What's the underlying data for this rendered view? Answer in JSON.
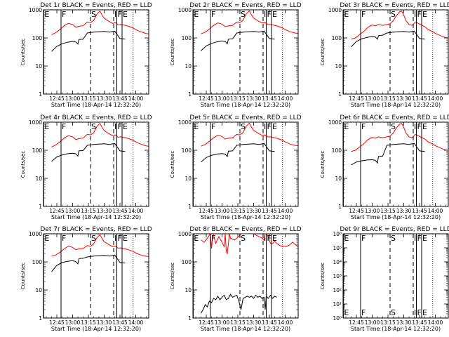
{
  "figure": {
    "background": "#ffffff"
  },
  "chart_data": {
    "type": "line",
    "yscale": "log",
    "x_tick_labels": [
      "12:45",
      "13:00",
      "13:15",
      "13:30",
      "13:45",
      "14:00"
    ],
    "x_tick_minutes": [
      45,
      60,
      75,
      90,
      105,
      120
    ],
    "xlim_minutes": [
      32.33,
      132.33
    ],
    "xlabel": "Start Time (18-Apr-14 12:32:20)",
    "ylabel": "Counts/sec",
    "default_ylim": [
      1,
      1000
    ],
    "default_y_ticks": [
      1,
      10,
      100,
      1000
    ],
    "default_y_tick_labels": [
      "1",
      "10",
      "100",
      "1000"
    ],
    "colors": {
      "events": "#000000",
      "lld": "#ff0000"
    },
    "interval_markers": [
      {
        "label": "E",
        "x": 32.6,
        "style": "solid"
      },
      {
        "label": "F",
        "x": 49,
        "style": "solid"
      },
      {
        "label": "S",
        "x": 77,
        "style": "dashed"
      },
      {
        "label": "I",
        "x": 99,
        "style": "dashed"
      },
      {
        "label": "F",
        "x": 102,
        "style": "solid"
      },
      {
        "label": "E",
        "x": 107,
        "style": "solid"
      },
      {
        "label": "",
        "x": 117.5,
        "style": "dotted"
      }
    ],
    "panels": [
      {
        "title": "Det 1r BLACK = Events, RED = LLD",
        "series": [
          {
            "key": "events",
            "x": [
              40,
              45,
              50,
              55,
              60,
              63,
              65,
              66,
              70,
              74,
              80,
              90,
              95,
              100,
              105,
              110
            ],
            "y": [
              33,
              50,
              62,
              70,
              75,
              72,
              60,
              88,
              90,
              150,
              160,
              170,
              160,
              175,
              95,
              90
            ]
          },
          {
            "key": "lld",
            "x": [
              40,
              44,
              48,
              52,
              56,
              60,
              63,
              66,
              70,
              74,
              77,
              80,
              83,
              86,
              88,
              90,
              92,
              95,
              98,
              101,
              103,
              106,
              110,
              113,
              117,
              121,
              125,
              129,
              132
            ],
            "y": [
              130,
              155,
              200,
              270,
              330,
              300,
              240,
              260,
              270,
              370,
              350,
              420,
              700,
              900,
              650,
              500,
              450,
              380,
              330,
              350,
              290,
              300,
              280,
              260,
              230,
              190,
              165,
              145,
              140
            ]
          }
        ]
      },
      {
        "title": "Det 2r BLACK = Events, RED = LLD",
        "series": [
          {
            "key": "events",
            "x": [
              40,
              45,
              50,
              55,
              60,
              63,
              65,
              66,
              70,
              74,
              80,
              90,
              95,
              100,
              105,
              110
            ],
            "y": [
              35,
              52,
              64,
              72,
              78,
              74,
              62,
              90,
              92,
              150,
              160,
              170,
              160,
              175,
              95,
              90
            ]
          },
          {
            "key": "lld",
            "x": [
              40,
              44,
              48,
              52,
              56,
              60,
              63,
              66,
              70,
              74,
              77,
              80,
              83,
              86,
              88,
              90,
              92,
              95,
              98,
              101,
              103,
              106,
              110,
              113,
              117,
              121,
              125,
              129,
              132
            ],
            "y": [
              140,
              160,
              210,
              280,
              340,
              310,
              250,
              270,
              280,
              370,
              350,
              430,
              720,
              920,
              660,
              510,
              460,
              390,
              340,
              350,
              300,
              300,
              280,
              260,
              230,
              190,
              165,
              150,
              145
            ]
          }
        ]
      },
      {
        "title": "Det 3r BLACK = Events, RED = LLD",
        "series": [
          {
            "key": "events",
            "x": [
              40,
              45,
              50,
              55,
              60,
              63,
              65,
              66,
              70,
              74,
              80,
              90,
              95,
              100,
              105,
              110
            ],
            "y": [
              48,
              75,
              92,
              105,
              112,
              108,
              90,
              120,
              125,
              150,
              160,
              170,
              160,
              175,
              95,
              90
            ]
          },
          {
            "key": "lld",
            "x": [
              40,
              44,
              48,
              52,
              56,
              60,
              63,
              66,
              70,
              74,
              77,
              80,
              83,
              86,
              88,
              90,
              92,
              95,
              98,
              101,
              103,
              106,
              110,
              113,
              117,
              121,
              125,
              129,
              132
            ],
            "y": [
              90,
              100,
              130,
              170,
              240,
              290,
              270,
              300,
              280,
              300,
              320,
              410,
              620,
              850,
              900,
              650,
              420,
              300,
              280,
              370,
              340,
              300,
              250,
              200,
              170,
              140,
              120,
              105,
              100
            ]
          }
        ]
      },
      {
        "title": "Det 4r BLACK = Events, RED = LLD",
        "series": [
          {
            "key": "events",
            "x": [
              40,
              45,
              50,
              55,
              60,
              63,
              65,
              66,
              70,
              74,
              80,
              90,
              95,
              100,
              105,
              110
            ],
            "y": [
              40,
              58,
              68,
              75,
              78,
              75,
              62,
              95,
              98,
              150,
              160,
              170,
              160,
              175,
              95,
              90
            ]
          },
          {
            "key": "lld",
            "x": [
              40,
              44,
              48,
              52,
              56,
              60,
              63,
              66,
              70,
              74,
              77,
              80,
              83,
              86,
              88,
              90,
              92,
              95,
              98,
              101,
              103,
              106,
              110,
              113,
              117,
              121,
              125,
              129,
              132
            ],
            "y": [
              130,
              155,
              200,
              270,
              330,
              300,
              240,
              260,
              270,
              370,
              350,
              420,
              700,
              900,
              650,
              500,
              450,
              380,
              330,
              350,
              290,
              300,
              280,
              260,
              230,
              190,
              165,
              145,
              140
            ]
          }
        ]
      },
      {
        "title": "Det 5r BLACK = Events, RED = LLD",
        "series": [
          {
            "key": "events",
            "x": [
              40,
              45,
              50,
              55,
              60,
              63,
              65,
              66,
              70,
              74,
              80,
              90,
              95,
              100,
              105,
              110
            ],
            "y": [
              38,
              55,
              66,
              73,
              76,
              73,
              60,
              92,
              95,
              150,
              160,
              170,
              160,
              175,
              95,
              90
            ]
          },
          {
            "key": "lld",
            "x": [
              40,
              44,
              48,
              52,
              56,
              60,
              63,
              66,
              70,
              74,
              77,
              80,
              83,
              86,
              88,
              90,
              92,
              95,
              98,
              101,
              103,
              106,
              110,
              113,
              117,
              121,
              125,
              129,
              132
            ],
            "y": [
              140,
              160,
              210,
              280,
              340,
              310,
              250,
              270,
              280,
              370,
              350,
              430,
              720,
              920,
              660,
              510,
              460,
              390,
              340,
              350,
              300,
              300,
              280,
              260,
              230,
              190,
              165,
              150,
              145
            ]
          }
        ]
      },
      {
        "title": "Det 6r BLACK = Events, RED = LLD",
        "series": [
          {
            "key": "events",
            "x": [
              40,
              45,
              50,
              55,
              60,
              63,
              65,
              66,
              70,
              74,
              80,
              90,
              95,
              100,
              105,
              110
            ],
            "y": [
              30,
              38,
              42,
              45,
              46,
              44,
              35,
              60,
              62,
              150,
              160,
              170,
              160,
              175,
              95,
              90
            ]
          },
          {
            "key": "lld",
            "x": [
              40,
              44,
              48,
              52,
              56,
              60,
              63,
              66,
              70,
              74,
              77,
              80,
              83,
              86,
              88,
              90,
              92,
              95,
              98,
              101,
              103,
              106,
              110,
              113,
              117,
              121,
              125,
              129,
              132
            ],
            "y": [
              90,
              100,
              130,
              170,
              240,
              290,
              270,
              300,
              280,
              300,
              320,
              410,
              620,
              850,
              900,
              650,
              420,
              300,
              280,
              370,
              340,
              300,
              250,
              200,
              170,
              140,
              120,
              105,
              100
            ]
          }
        ]
      },
      {
        "title": "Det 7r BLACK = Events, RED = LLD",
        "series": [
          {
            "key": "events",
            "x": [
              40,
              45,
              50,
              55,
              60,
              63,
              65,
              66,
              70,
              74,
              80,
              90,
              95,
              100,
              105,
              110
            ],
            "y": [
              45,
              75,
              95,
              105,
              110,
              102,
              85,
              130,
              135,
              150,
              160,
              170,
              160,
              175,
              95,
              90
            ]
          },
          {
            "key": "lld",
            "x": [
              40,
              44,
              48,
              52,
              56,
              60,
              63,
              66,
              70,
              74,
              77,
              80,
              83,
              86,
              88,
              90,
              92,
              95,
              98,
              101,
              103,
              106,
              110,
              113,
              117,
              121,
              125,
              129,
              132
            ],
            "y": [
              160,
              175,
              220,
              290,
              360,
              330,
              270,
              290,
              300,
              380,
              360,
              440,
              720,
              930,
              680,
              520,
              470,
              400,
              350,
              360,
              310,
              310,
              290,
              270,
              240,
              200,
              175,
              160,
              155
            ]
          }
        ]
      },
      {
        "title": "Det 8r BLACK = Events, RED = LLD",
        "series": [
          {
            "key": "events",
            "x": [
              40,
              42,
              44,
              46,
              48,
              50,
              52,
              54,
              56,
              58,
              60,
              62,
              64,
              66,
              68,
              70,
              72,
              74,
              76,
              78,
              80,
              82,
              84,
              86,
              88,
              90,
              92,
              94,
              96,
              98,
              100,
              101,
              102,
              104,
              106,
              108,
              110,
              112
            ],
            "y": [
              1.5,
              2,
              3,
              2.5,
              4,
              3.5,
              5,
              4.5,
              6,
              4.5,
              5.5,
              6.5,
              4.5,
              5,
              7,
              5.5,
              6,
              6.5,
              4,
              2,
              5,
              5.5,
              6,
              5.5,
              6,
              5,
              6.5,
              5.5,
              6,
              5,
              5.5,
              2,
              6,
              5,
              6.5,
              5,
              6,
              5.5
            ]
          },
          {
            "key": "lld",
            "x": [
              40,
              43,
              46,
              48,
              49,
              50,
              51,
              52,
              54,
              57,
              60,
              62,
              63,
              64,
              65,
              67,
              68,
              70,
              72,
              74,
              76,
              78,
              80,
              82,
              85,
              88,
              90,
              92,
              95,
              98,
              100,
              101,
              102,
              104,
              106,
              108,
              110,
              112,
              115,
              118,
              121,
              124,
              127,
              130,
              132
            ],
            "y": [
              600,
              500,
              700,
              900,
              1000,
              300,
              800,
              900,
              450,
              800,
              500,
              350,
              1000,
              240,
              200,
              1000,
              700,
              650,
              600,
              700,
              800,
              1000,
              1000,
              1000,
              1000,
              1000,
              1000,
              900,
              800,
              700,
              600,
              1000,
              1000,
              800,
              450,
              450,
              550,
              450,
              380,
              360,
              350,
              400,
              500,
              400,
              350
            ]
          }
        ]
      },
      {
        "title": "Det 9r BLACK = Events, RED = LLD",
        "ylim": [
          1,
          1000000
        ],
        "y_ticks": [
          1,
          10,
          100,
          1000,
          10000,
          100000,
          1000000
        ],
        "y_tick_labels": [
          "10⁰",
          "10¹",
          "10²",
          "10³",
          "10⁴",
          "10⁵",
          "10⁶"
        ],
        "series": []
      }
    ]
  }
}
